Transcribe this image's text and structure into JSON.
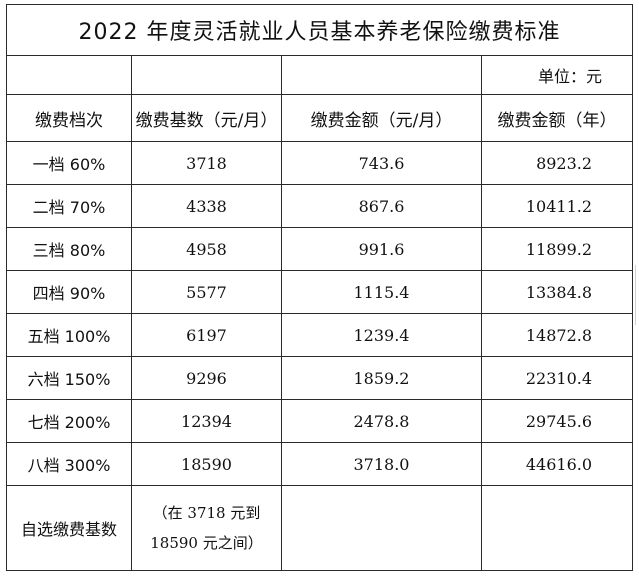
{
  "title": "2022 年度灵活就业人员基本养老保险缴费标准",
  "unit": "单位：元",
  "headers": [
    "缴费档次",
    "缴费基数（元/月）",
    "缴费金额（元/月）",
    "缴费金额（年）"
  ],
  "rows": [
    {
      "grade": "一档 60%",
      "base": "3718",
      "monthly": "743.6",
      "yearly": "8923.2"
    },
    {
      "grade": "二档 70%",
      "base": "4338",
      "monthly": "867.6",
      "yearly": "10411.2"
    },
    {
      "grade": "三档 80%",
      "base": "4958",
      "monthly": "991.6",
      "yearly": "11899.2"
    },
    {
      "grade": "四档 90%",
      "base": "5577",
      "monthly": "1115.4",
      "yearly": "13384.8"
    },
    {
      "grade": "五档 100%",
      "base": "6197",
      "monthly": "1239.4",
      "yearly": "14872.8"
    },
    {
      "grade": "六档 150%",
      "base": "9296",
      "monthly": "1859.2",
      "yearly": "22310.4"
    },
    {
      "grade": "七档 200%",
      "base": "12394",
      "monthly": "2478.8",
      "yearly": "29745.6"
    },
    {
      "grade": "八档 300%",
      "base": "18590",
      "monthly": "3718.0",
      "yearly": "44616.0"
    }
  ],
  "custom": {
    "label": "自选缴费基数",
    "note_line1": "（在 3718 元到",
    "note_line2": "18590 元之间）"
  }
}
